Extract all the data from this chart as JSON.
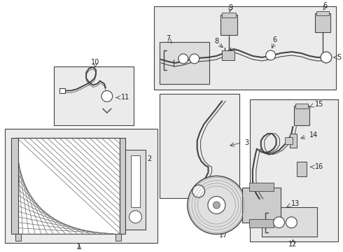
{
  "bg_color": "#ffffff",
  "line_color": "#444444",
  "box_color": "#e8e8e8",
  "fig_w": 4.9,
  "fig_h": 3.6,
  "dpi": 100
}
